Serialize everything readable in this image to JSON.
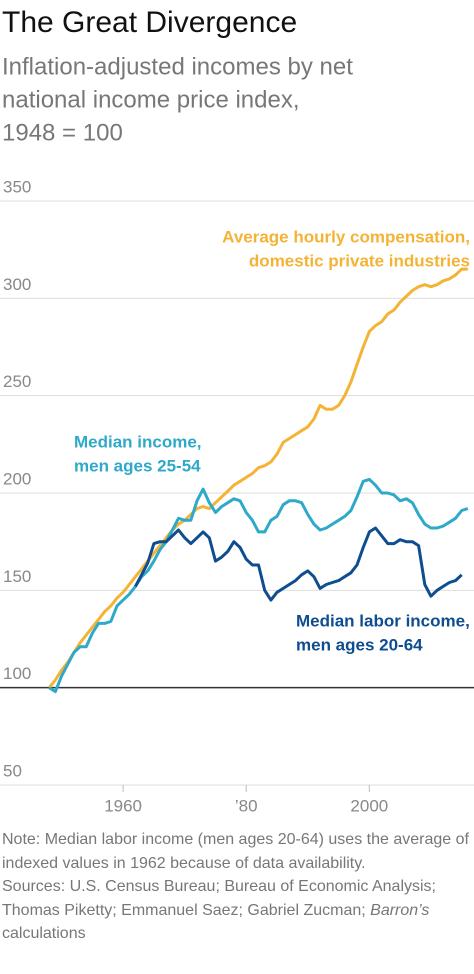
{
  "chart_data": {
    "type": "line",
    "title": "The Great Divergence",
    "subtitle": [
      "Inflation-adjusted incomes by net",
      "national income price index,",
      "1948 = 100"
    ],
    "x": [
      1948,
      1949,
      1950,
      1951,
      1952,
      1953,
      1954,
      1955,
      1956,
      1957,
      1958,
      1959,
      1960,
      1961,
      1962,
      1963,
      1964,
      1965,
      1966,
      1967,
      1968,
      1969,
      1970,
      1971,
      1972,
      1973,
      1974,
      1975,
      1976,
      1977,
      1978,
      1979,
      1980,
      1981,
      1982,
      1983,
      1984,
      1985,
      1986,
      1987,
      1988,
      1989,
      1990,
      1991,
      1992,
      1993,
      1994,
      1995,
      1996,
      1997,
      1998,
      1999,
      2000,
      2001,
      2002,
      2003,
      2004,
      2005,
      2006,
      2007,
      2008,
      2009,
      2010,
      2011,
      2012,
      2013,
      2014,
      2015,
      2016
    ],
    "series": [
      {
        "label": [
          "Average hourly compensation,",
          "domestic private industries"
        ],
        "color": "#f5b335",
        "values": [
          100,
          104,
          109,
          113,
          118,
          123,
          127,
          131,
          135,
          139,
          142,
          146,
          149,
          153,
          157,
          161,
          165,
          169,
          173,
          177,
          181,
          184,
          186,
          189,
          192,
          193,
          192,
          195,
          198,
          201,
          204,
          206,
          208,
          210,
          213,
          214,
          216,
          220,
          226,
          228,
          230,
          232,
          234,
          238,
          245,
          243,
          243,
          245,
          250,
          257,
          266,
          275,
          283,
          286,
          288,
          292,
          294,
          298,
          301,
          304,
          306,
          307,
          306,
          307,
          309,
          310,
          312,
          315,
          315
        ]
      },
      {
        "label": [
          "Median income,",
          "men ages 25-54"
        ],
        "color": "#2fa9c9",
        "values": [
          100,
          98,
          106,
          112,
          118,
          121,
          121,
          128,
          133,
          133,
          134,
          142,
          145,
          148,
          152,
          157,
          160,
          165,
          171,
          175,
          181,
          187,
          186,
          186,
          196,
          202,
          195,
          190,
          193,
          195,
          197,
          196,
          190,
          186,
          180,
          180,
          186,
          188,
          194,
          196,
          196,
          195,
          189,
          184,
          181,
          182,
          184,
          186,
          188,
          191,
          198,
          206,
          207,
          204,
          200,
          200,
          199,
          196,
          197,
          195,
          189,
          184,
          182,
          182,
          183,
          185,
          187,
          191,
          192
        ]
      },
      {
        "label": [
          "Median labor income,",
          "men ages 20-64"
        ],
        "color": "#0e4d8f",
        "values": [
          null,
          null,
          null,
          null,
          null,
          null,
          null,
          null,
          null,
          null,
          null,
          null,
          null,
          null,
          152,
          158,
          164,
          174,
          175,
          175,
          178,
          181,
          177,
          174,
          177,
          180,
          177,
          165,
          167,
          170,
          175,
          172,
          166,
          163,
          163,
          150,
          145,
          149,
          151,
          153,
          155,
          158,
          160,
          157,
          151,
          153,
          154,
          155,
          157,
          159,
          163,
          172,
          180,
          182,
          178,
          174,
          174,
          176,
          175,
          175,
          173,
          153,
          147,
          150,
          152,
          154,
          155,
          158,
          null
        ]
      }
    ],
    "xlim": [
      1940,
      2017
    ],
    "xticks": [
      1960,
      {
        "value": 1980,
        "label": "’80"
      },
      2000
    ],
    "ylim": [
      50,
      350
    ],
    "yticks": [
      50,
      100,
      150,
      200,
      250,
      300,
      350
    ],
    "baseline": 100,
    "grid": true,
    "note": [
      "Note: Median labor income (men ages 20-64) uses the average of indexed values in 1962 because of data availability."
    ],
    "sources": [
      "Sources: U.S. Census Bureau; Bureau of Economic Analysis; Thomas Piketty; Emmanuel Saez; Gabriel Zucman; ",
      "Barron’s",
      " calculations"
    ]
  }
}
